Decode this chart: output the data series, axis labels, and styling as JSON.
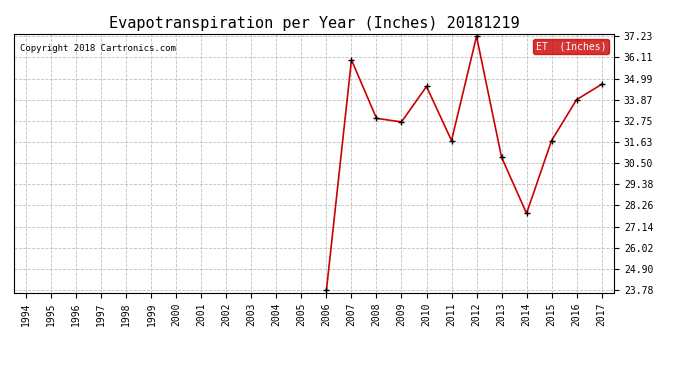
{
  "title": "Evapotranspiration per Year (Inches) 20181219",
  "copyright_text": "Copyright 2018 Cartronics.com",
  "legend_label": "ET  (Inches)",
  "years": [
    2006,
    2007,
    2008,
    2009,
    2010,
    2011,
    2012,
    2013,
    2014,
    2015,
    2016,
    2017
  ],
  "values": [
    23.78,
    35.98,
    32.88,
    32.69,
    34.57,
    31.7,
    37.23,
    30.82,
    27.84,
    31.7,
    33.87,
    34.68
  ],
  "all_years": [
    "1994",
    "1995",
    "1996",
    "1997",
    "1998",
    "1999",
    "2000",
    "2001",
    "2002",
    "2003",
    "2004",
    "2005",
    "2006",
    "2007",
    "2008",
    "2009",
    "2010",
    "2011",
    "2012",
    "2013",
    "2014",
    "2015",
    "2016",
    "2017"
  ],
  "ylim_min": 23.78,
  "ylim_max": 37.23,
  "yticks": [
    23.78,
    24.9,
    26.02,
    27.14,
    28.26,
    29.38,
    30.5,
    31.63,
    32.75,
    33.87,
    34.99,
    36.11,
    37.23
  ],
  "line_color": "#cc0000",
  "marker_color": "#000000",
  "background_color": "#ffffff",
  "grid_color": "#b0b0b0",
  "title_fontsize": 11,
  "tick_fontsize": 7,
  "copyright_fontsize": 6.5,
  "legend_bg_color": "#cc0000",
  "legend_text_color": "#ffffff"
}
